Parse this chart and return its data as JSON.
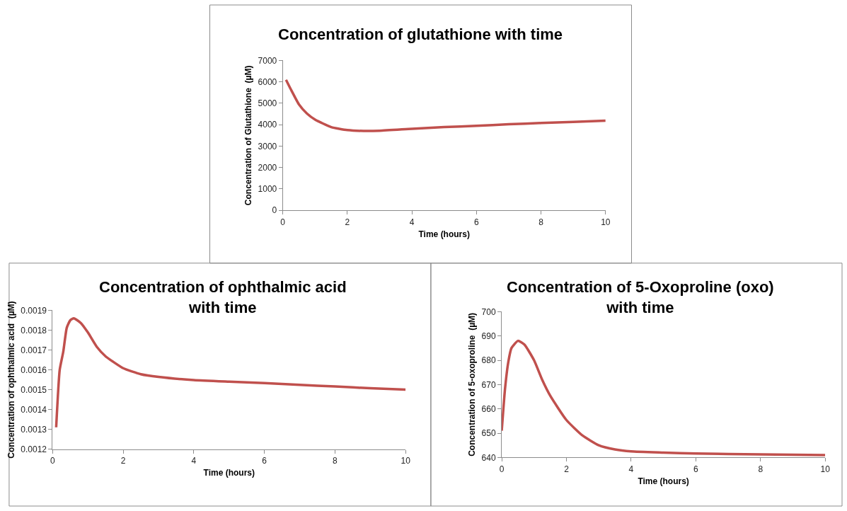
{
  "chart_data": [
    {
      "type": "line",
      "title": "Concentration of glutathione with time",
      "xlabel": "Time (hours)",
      "ylabel": "Concentration of Glutathione  (µM)",
      "x": [
        0.1,
        0.25,
        0.5,
        0.75,
        1,
        1.5,
        2,
        2.5,
        3,
        4,
        5,
        6,
        7,
        8,
        9,
        10
      ],
      "series": [
        {
          "color": "#c0504d",
          "values": [
            6100,
            5650,
            4950,
            4520,
            4240,
            3890,
            3750,
            3710,
            3720,
            3810,
            3890,
            3950,
            4020,
            4080,
            4130,
            4190
          ]
        }
      ],
      "xlim": [
        0,
        10
      ],
      "xticks": [
        0,
        2,
        4,
        6,
        8,
        10
      ],
      "ylim": [
        0,
        7000
      ],
      "yticks": [
        0,
        1000,
        2000,
        3000,
        4000,
        5000,
        6000,
        7000
      ],
      "grid": false,
      "marker": "none",
      "line_style": "solid"
    },
    {
      "type": "line",
      "title": "Concentration of ophthalmic acid with time",
      "xlabel": "Time (hours)",
      "ylabel": "Concentration of ophthalmic acid  (µM)",
      "x": [
        0.1,
        0.2,
        0.3,
        0.4,
        0.5,
        0.6,
        0.8,
        1,
        1.25,
        1.5,
        2,
        2.5,
        3,
        4,
        5,
        6,
        7,
        8,
        9,
        10
      ],
      "series": [
        {
          "color": "#c0504d",
          "values": [
            0.00131,
            0.0016,
            0.00169,
            0.001812,
            0.00185,
            0.00186,
            0.001836,
            0.001788,
            0.001716,
            0.001668,
            0.001608,
            0.001578,
            0.001564,
            0.001548,
            0.00154,
            0.001533,
            0.001524,
            0.001516,
            0.001507,
            0.0015
          ]
        }
      ],
      "xlim": [
        0,
        10
      ],
      "xticks": [
        0,
        2,
        4,
        6,
        8,
        10
      ],
      "ylim": [
        0.0012,
        0.0019
      ],
      "yticks": [
        0.0012,
        0.0013,
        0.0014,
        0.0015,
        0.0016,
        0.0017,
        0.0018,
        0.0019
      ],
      "grid": false,
      "marker": "none",
      "line_style": "solid"
    },
    {
      "type": "line",
      "title": "Concentration of 5-Oxoproline (oxo) with time",
      "xlabel": "Time (hours)",
      "ylabel": "Concentration of 5-oxoproline  (µM)",
      "x": [
        0,
        0.1,
        0.2,
        0.3,
        0.5,
        0.7,
        1,
        1.25,
        1.5,
        2,
        2.5,
        3,
        3.5,
        4,
        5,
        6,
        8,
        10
      ],
      "series": [
        {
          "color": "#c0504d",
          "values": [
            651,
            668,
            679,
            685,
            688,
            686.5,
            680,
            672,
            665.4,
            655.4,
            649,
            645,
            643.3,
            642.5,
            642,
            641.6,
            641.3,
            641
          ]
        }
      ],
      "xlim": [
        0,
        10
      ],
      "xticks": [
        0,
        2,
        4,
        6,
        8,
        10
      ],
      "ylim": [
        640,
        700
      ],
      "yticks": [
        640,
        650,
        660,
        670,
        680,
        690,
        700
      ],
      "grid": false,
      "marker": "none",
      "line_style": "solid"
    }
  ]
}
